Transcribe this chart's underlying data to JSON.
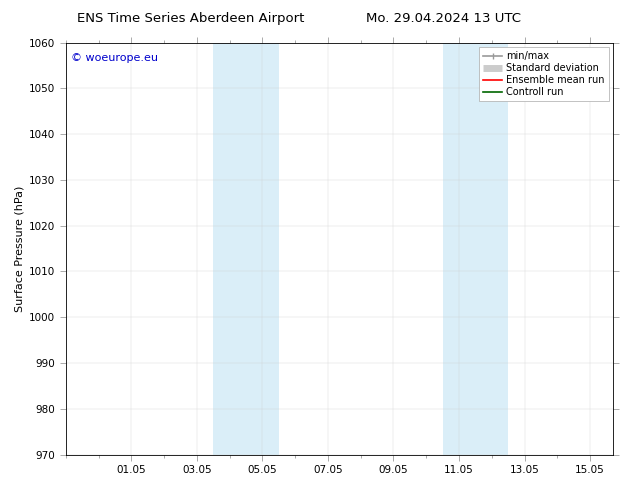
{
  "title_left": "ENS Time Series Aberdeen Airport",
  "title_right": "Mo. 29.04.2024 13 UTC",
  "ylabel": "Surface Pressure (hPa)",
  "ylim": [
    970,
    1060
  ],
  "yticks": [
    970,
    980,
    990,
    1000,
    1010,
    1020,
    1030,
    1040,
    1050,
    1060
  ],
  "xtick_labels": [
    "01.05",
    "03.05",
    "05.05",
    "07.05",
    "09.05",
    "11.05",
    "13.05",
    "15.05"
  ],
  "xtick_positions": [
    2,
    4,
    6,
    8,
    10,
    12,
    14,
    16
  ],
  "xlim": [
    0,
    16.714
  ],
  "shaded_bands": [
    {
      "x_start": 4.5,
      "x_end": 6.5
    },
    {
      "x_start": 11.5,
      "x_end": 13.5
    }
  ],
  "shaded_color": "#daeef8",
  "background_color": "#ffffff",
  "watermark_text": "© woeurope.eu",
  "watermark_color": "#0000cc",
  "legend_items": [
    {
      "label": "min/max",
      "color": "#999999",
      "lw": 1.2
    },
    {
      "label": "Standard deviation",
      "color": "#cccccc",
      "lw": 5
    },
    {
      "label": "Ensemble mean run",
      "color": "#ff0000",
      "lw": 1.2
    },
    {
      "label": "Controll run",
      "color": "#006600",
      "lw": 1.2
    }
  ],
  "title_fontsize": 9.5,
  "ylabel_fontsize": 8,
  "tick_fontsize": 7.5,
  "watermark_fontsize": 8,
  "legend_fontsize": 7
}
